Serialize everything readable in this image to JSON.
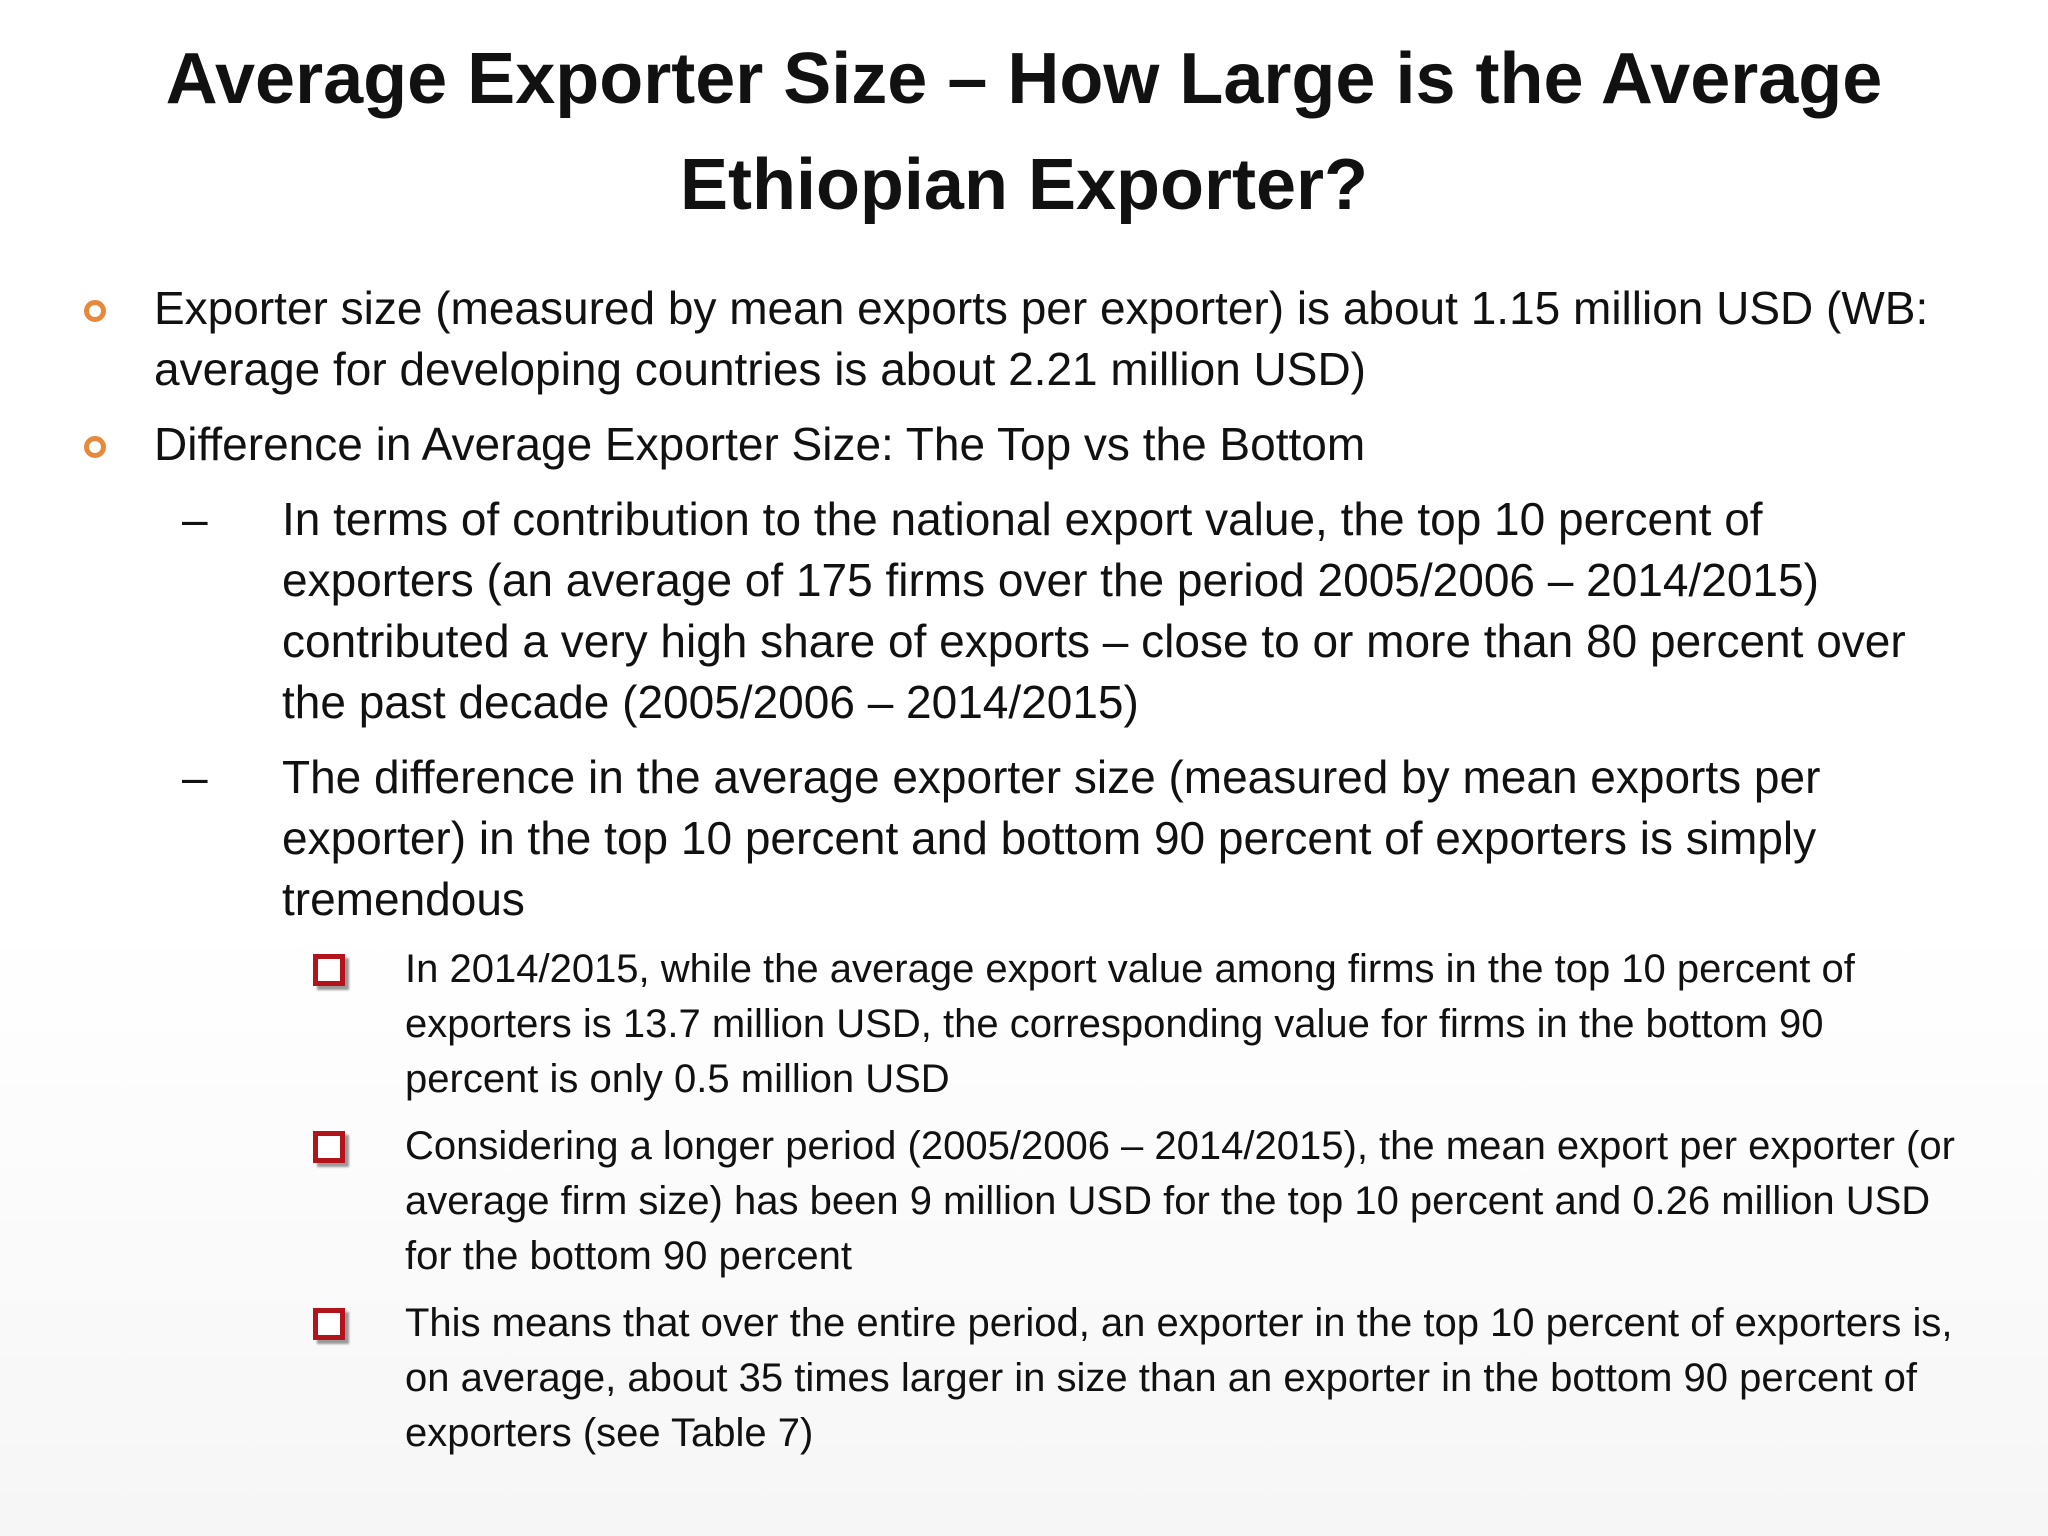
{
  "title": "Average Exporter Size – How Large is the Average Ethiopian Exporter?",
  "bullets": [
    {
      "text": "Exporter size (measured by mean exports per exporter) is about 1.15 million USD (WB: average for developing countries is about 2.21 million USD)"
    },
    {
      "text": "Difference in Average Exporter Size: The Top vs the Bottom",
      "items": [
        {
          "text": "In terms of contribution to the national export value, the top 10 percent of exporters (an average of 175 firms over the period 2005/2006 – 2014/2015) contributed a very high share of exports – close to or more than 80 percent over the past decade (2005/2006 – 2014/2015)"
        },
        {
          "text": "The difference in the average exporter size (measured by mean exports per exporter) in the top 10 percent and bottom 90 percent of exporters is simply tremendous",
          "items": [
            {
              "text": "In 2014/2015, while the average export value among firms in the top 10 percent of exporters is 13.7 million USD, the corresponding value for firms in the bottom 90 percent is only 0.5 million USD"
            },
            {
              "text": "Considering a longer period (2005/2006 – 2014/2015), the mean export per exporter (or average firm size) has been 9 million USD for the top 10 percent and 0.26 million USD for the bottom 90 percent"
            },
            {
              "text": "This means that over the entire period, an exporter in the top 10 percent of exporters is, on average, about 35 times larger in size than an exporter in the bottom 90 percent of exporters (see Table 7)"
            }
          ]
        }
      ]
    }
  ]
}
